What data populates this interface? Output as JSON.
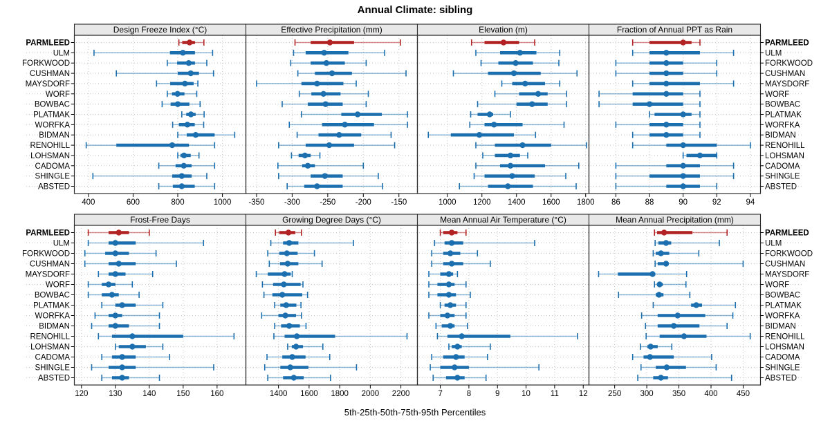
{
  "page": {
    "title": "Annual Climate: sibling",
    "footer": "5th-25th-50th-75th-95th Percentiles"
  },
  "colors": {
    "normal": "#1B6FAF",
    "highlight": "#B22222",
    "grid": "#C3C3C3",
    "strip_bg": "#E8E8E8",
    "border": "#2B2B2B",
    "text": "#000000",
    "background": "#FFFFFF"
  },
  "percentile_levels": [
    5,
    25,
    50,
    75,
    95
  ],
  "highlight_station": "PARMLEED",
  "stations": [
    "PARMLEED",
    "ULM",
    "FORKWOOD",
    "CUSHMAN",
    "MAYSDORF",
    "WORF",
    "BOWBAC",
    "PLATMAK",
    "WORFKA",
    "BIDMAN",
    "RENOHILL",
    "LOHSMAN",
    "CADOMA",
    "SHINGLE",
    "ABSTED"
  ],
  "chart_data": [
    {
      "type": "dotplot",
      "title": "Design Freeze Index (°C)",
      "row": "top",
      "col": 0,
      "xlim": [
        337,
        1105
      ],
      "xticks": [
        400,
        600,
        800,
        1000
      ],
      "values": [
        [
          805,
          820,
          853,
          877,
          917
        ],
        [
          425,
          765,
          823,
          877,
          956
        ],
        [
          753,
          797,
          849,
          877,
          930
        ],
        [
          525,
          800,
          858,
          895,
          960
        ],
        [
          705,
          766,
          832,
          871,
          890
        ],
        [
          753,
          774,
          799,
          830,
          885
        ],
        [
          730,
          768,
          800,
          852,
          900
        ],
        [
          818,
          838,
          859,
          880,
          918
        ],
        [
          777,
          805,
          843,
          876,
          916
        ],
        [
          800,
          840,
          880,
          965,
          1055
        ],
        [
          390,
          525,
          775,
          850,
          965
        ],
        [
          800,
          812,
          828,
          858,
          895
        ],
        [
          715,
          790,
          827,
          862,
          965
        ],
        [
          420,
          775,
          818,
          862,
          930
        ],
        [
          715,
          778,
          818,
          876,
          965
        ]
      ]
    },
    {
      "type": "dotplot",
      "title": "Effective Precipitation (mm)",
      "row": "top",
      "col": 1,
      "xlim": [
        -365,
        -124
      ],
      "xticks": [
        -350,
        -300,
        -250,
        -200,
        -150
      ],
      "values": [
        [
          -296,
          -274,
          -247,
          -213,
          -148
        ],
        [
          -298,
          -281,
          -255,
          -221,
          -170
        ],
        [
          -302,
          -274,
          -252,
          -226,
          -196
        ],
        [
          -292,
          -268,
          -244,
          -216,
          -140
        ],
        [
          -350,
          -287,
          -265,
          -228,
          -210
        ],
        [
          -290,
          -273,
          -256,
          -232,
          -193
        ],
        [
          -314,
          -278,
          -253,
          -229,
          -196
        ],
        [
          -287,
          -231,
          -208,
          -174,
          -138
        ],
        [
          -304,
          -258,
          -226,
          -185,
          -138
        ],
        [
          -293,
          -263,
          -234,
          -203,
          -161
        ],
        [
          -319,
          -281,
          -248,
          -213,
          -156
        ],
        [
          -301,
          -291,
          -282,
          -274,
          -261
        ],
        [
          -320,
          -286,
          -278,
          -268,
          -200
        ],
        [
          -319,
          -274,
          -254,
          -229,
          -179
        ],
        [
          -307,
          -283,
          -265,
          -229,
          -173
        ]
      ]
    },
    {
      "type": "dotplot",
      "title": "Elevation (m)",
      "row": "top",
      "col": 2,
      "xlim": [
        827,
        1819
      ],
      "xticks": [
        1000,
        1200,
        1400,
        1600,
        1800
      ],
      "values": [
        [
          1140,
          1215,
          1325,
          1415,
          1505
        ],
        [
          1165,
          1305,
          1420,
          1515,
          1650
        ],
        [
          1195,
          1295,
          1395,
          1495,
          1645
        ],
        [
          1035,
          1235,
          1385,
          1540,
          1750
        ],
        [
          1315,
          1375,
          1450,
          1565,
          1650
        ],
        [
          1275,
          1415,
          1525,
          1580,
          1690
        ],
        [
          1175,
          1400,
          1490,
          1580,
          1690
        ],
        [
          1135,
          1175,
          1245,
          1265,
          1365
        ],
        [
          1130,
          1215,
          1270,
          1435,
          1675
        ],
        [
          890,
          1020,
          1185,
          1385,
          1510
        ],
        [
          1165,
          1275,
          1435,
          1600,
          1805
        ],
        [
          1205,
          1275,
          1365,
          1420,
          1465
        ],
        [
          1165,
          1305,
          1365,
          1565,
          1760
        ],
        [
          1155,
          1215,
          1375,
          1505,
          1685
        ],
        [
          1070,
          1235,
          1350,
          1495,
          1745
        ]
      ]
    },
    {
      "type": "dotplot",
      "title": "Fraction of Annual PPT as Rain",
      "row": "top",
      "col": 3,
      "xlim": [
        84.4,
        94.6
      ],
      "xticks": [
        86,
        88,
        90,
        92,
        94
      ],
      "values": [
        [
          87,
          88,
          90,
          90.5,
          91
        ],
        [
          87,
          88,
          89,
          91,
          93
        ],
        [
          86,
          88,
          89,
          90,
          92
        ],
        [
          86,
          88,
          89,
          90,
          92
        ],
        [
          87,
          88,
          89,
          91,
          93
        ],
        [
          85,
          87,
          89,
          90,
          91
        ],
        [
          85,
          87,
          88,
          90,
          91
        ],
        [
          88,
          88.3,
          90,
          90.5,
          91
        ],
        [
          86,
          88,
          89,
          90,
          91
        ],
        [
          87,
          88,
          89,
          90,
          91
        ],
        [
          87,
          89,
          90,
          92,
          94
        ],
        [
          90,
          90.2,
          91,
          92,
          92
        ],
        [
          86,
          89,
          90,
          91,
          93
        ],
        [
          86,
          88,
          90,
          91,
          93
        ],
        [
          86,
          89,
          90,
          91,
          92
        ]
      ]
    },
    {
      "type": "dotplot",
      "title": "Frost-Free Days",
      "row": "bottom",
      "col": 0,
      "xlim": [
        117.9,
        168.5
      ],
      "xticks": [
        120,
        130,
        140,
        150,
        160
      ],
      "values": [
        [
          122,
          128,
          131,
          134,
          140
        ],
        [
          122,
          128,
          130,
          136,
          156
        ],
        [
          121,
          127,
          130,
          134,
          142
        ],
        [
          121,
          128,
          131,
          136,
          148
        ],
        [
          125,
          128,
          130,
          133,
          141
        ],
        [
          122,
          126,
          128,
          130,
          135
        ],
        [
          122,
          126,
          129,
          131,
          137
        ],
        [
          126,
          130,
          132,
          136,
          144
        ],
        [
          124,
          128,
          130,
          132,
          143
        ],
        [
          123,
          128,
          130,
          134,
          143
        ],
        [
          125,
          129,
          135,
          150,
          165
        ],
        [
          130,
          131,
          135,
          139,
          144
        ],
        [
          126,
          129,
          132,
          136,
          146
        ],
        [
          123,
          128,
          132,
          136,
          159
        ],
        [
          126,
          129,
          132,
          134,
          143
        ]
      ]
    },
    {
      "type": "dotplot",
      "title": "Growing Degree Days (°C)",
      "row": "bottom",
      "col": 1,
      "xlim": [
        1187,
        2308
      ],
      "xticks": [
        1400,
        1600,
        1800,
        2000,
        2200
      ],
      "values": [
        [
          1380,
          1405,
          1465,
          1510,
          1550
        ],
        [
          1350,
          1430,
          1470,
          1530,
          1890
        ],
        [
          1330,
          1405,
          1455,
          1525,
          1635
        ],
        [
          1340,
          1410,
          1460,
          1530,
          1685
        ],
        [
          1255,
          1330,
          1440,
          1480,
          1490
        ],
        [
          1295,
          1365,
          1435,
          1545,
          1560
        ],
        [
          1305,
          1360,
          1425,
          1555,
          1590
        ],
        [
          1375,
          1412,
          1450,
          1517,
          1547
        ],
        [
          1290,
          1400,
          1445,
          1515,
          1550
        ],
        [
          1375,
          1417,
          1470,
          1540,
          1580
        ],
        [
          1370,
          1440,
          1520,
          1770,
          2240
        ],
        [
          1460,
          1487,
          1515,
          1560,
          1690
        ],
        [
          1325,
          1425,
          1490,
          1577,
          1735
        ],
        [
          1310,
          1412,
          1477,
          1595,
          1910
        ],
        [
          1330,
          1430,
          1500,
          1565,
          1740
        ]
      ]
    },
    {
      "type": "dotplot",
      "title": "Mean Annual Air Temperature (°C)",
      "row": "bottom",
      "col": 2,
      "xlim": [
        6.2,
        12.2
      ],
      "xticks": [
        7,
        8,
        9,
        10,
        11,
        12
      ],
      "values": [
        [
          7.0,
          7.1,
          7.4,
          7.6,
          7.9
        ],
        [
          6.8,
          7.15,
          7.4,
          7.8,
          10.3
        ],
        [
          6.7,
          7.1,
          7.35,
          7.7,
          8.3
        ],
        [
          6.7,
          7.1,
          7.4,
          7.8,
          8.75
        ],
        [
          6.6,
          7.0,
          7.3,
          7.45,
          7.6
        ],
        [
          6.6,
          6.9,
          7.3,
          7.5,
          7.9
        ],
        [
          6.6,
          6.9,
          7.3,
          7.55,
          8.05
        ],
        [
          7.0,
          7.15,
          7.35,
          7.55,
          7.9
        ],
        [
          6.6,
          7.0,
          7.25,
          7.5,
          7.9
        ],
        [
          6.85,
          7.05,
          7.35,
          7.5,
          7.95
        ],
        [
          6.9,
          7.25,
          7.75,
          9.45,
          11.8
        ],
        [
          7.3,
          7.4,
          7.6,
          7.75,
          8.75
        ],
        [
          6.7,
          7.1,
          7.55,
          7.85,
          8.65
        ],
        [
          6.65,
          7.0,
          7.5,
          8.0,
          10.45
        ],
        [
          6.75,
          7.2,
          7.6,
          7.85,
          8.6
        ]
      ]
    },
    {
      "type": "dotplot",
      "title": "Mean Annual Precipitation (mm)",
      "row": "bottom",
      "col": 3,
      "xlim": [
        210,
        477
      ],
      "xticks": [
        250,
        300,
        350,
        400,
        450
      ],
      "values": [
        [
          312,
          316,
          327,
          371,
          425
        ],
        [
          313,
          318,
          330,
          338,
          413
        ],
        [
          310,
          314,
          322,
          335,
          381
        ],
        [
          313,
          317,
          330,
          334,
          450
        ],
        [
          225,
          255,
          309,
          313,
          362
        ],
        [
          312,
          316,
          320,
          325,
          361
        ],
        [
          256,
          314,
          319,
          326,
          367
        ],
        [
          310,
          369,
          377,
          386,
          438
        ],
        [
          292,
          317,
          348,
          391,
          434
        ],
        [
          298,
          317,
          342,
          382,
          425
        ],
        [
          299,
          320,
          358,
          393,
          461
        ],
        [
          290,
          301,
          306,
          317,
          339
        ],
        [
          278,
          295,
          305,
          342,
          401
        ],
        [
          291,
          314,
          331,
          361,
          408
        ],
        [
          286,
          310,
          322,
          333,
          432
        ]
      ]
    }
  ]
}
